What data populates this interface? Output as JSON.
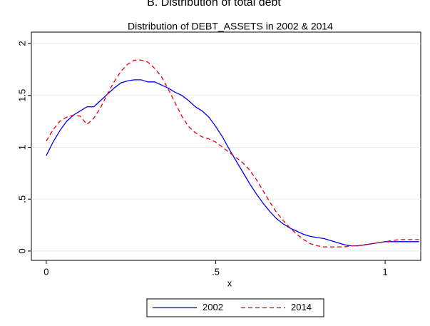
{
  "panel_title": "B. Distribution of total debt",
  "chart_data": {
    "type": "line",
    "title": "Distribution of DEBT_ASSETS in 2002 & 2014",
    "x_label": "x",
    "x": [
      0,
      0.02,
      0.04,
      0.06,
      0.08,
      0.1,
      0.12,
      0.14,
      0.16,
      0.18,
      0.2,
      0.22,
      0.24,
      0.26,
      0.28,
      0.3,
      0.32,
      0.34,
      0.36,
      0.38,
      0.4,
      0.42,
      0.44,
      0.46,
      0.48,
      0.5,
      0.52,
      0.54,
      0.56,
      0.58,
      0.6,
      0.62,
      0.64,
      0.66,
      0.68,
      0.7,
      0.72,
      0.74,
      0.76,
      0.78,
      0.8,
      0.82,
      0.84,
      0.86,
      0.88,
      0.9,
      0.92,
      0.94,
      0.96,
      0.98,
      1.0,
      1.02,
      1.04,
      1.06,
      1.08,
      1.1
    ],
    "series": [
      {
        "name": "2002",
        "color": "#0000ee",
        "dash": false,
        "values": [
          0.92,
          1.05,
          1.16,
          1.25,
          1.31,
          1.35,
          1.39,
          1.39,
          1.45,
          1.51,
          1.57,
          1.62,
          1.64,
          1.65,
          1.65,
          1.63,
          1.63,
          1.6,
          1.57,
          1.53,
          1.5,
          1.45,
          1.39,
          1.35,
          1.29,
          1.2,
          1.1,
          0.98,
          0.87,
          0.76,
          0.65,
          0.55,
          0.46,
          0.38,
          0.31,
          0.26,
          0.22,
          0.19,
          0.16,
          0.14,
          0.13,
          0.12,
          0.1,
          0.08,
          0.06,
          0.05,
          0.05,
          0.06,
          0.07,
          0.08,
          0.09,
          0.09,
          0.09,
          0.09,
          0.09,
          0.09
        ]
      },
      {
        "name": "2014",
        "color": "#e8000b",
        "dash": true,
        "values": [
          1.06,
          1.17,
          1.25,
          1.29,
          1.31,
          1.3,
          1.22,
          1.28,
          1.38,
          1.51,
          1.63,
          1.73,
          1.8,
          1.84,
          1.84,
          1.82,
          1.76,
          1.68,
          1.56,
          1.43,
          1.3,
          1.2,
          1.14,
          1.1,
          1.08,
          1.05,
          1.0,
          0.95,
          0.9,
          0.85,
          0.78,
          0.69,
          0.58,
          0.47,
          0.37,
          0.29,
          0.22,
          0.16,
          0.11,
          0.07,
          0.05,
          0.04,
          0.04,
          0.04,
          0.04,
          0.05,
          0.05,
          0.06,
          0.07,
          0.08,
          0.09,
          0.1,
          0.11,
          0.11,
          0.11,
          0.11
        ]
      }
    ],
    "xlim": [
      -0.044,
      1.105
    ],
    "ylim": [
      -0.09,
      2.11
    ],
    "xticks": [
      0,
      {
        "value": 0.5,
        "label": ".5"
      },
      1
    ],
    "yticks": [
      0,
      {
        "value": 0.5,
        "label": ".5"
      },
      1,
      {
        "value": 1.5,
        "label": "1.5"
      },
      2
    ],
    "grid": true,
    "legend": "bottom"
  }
}
